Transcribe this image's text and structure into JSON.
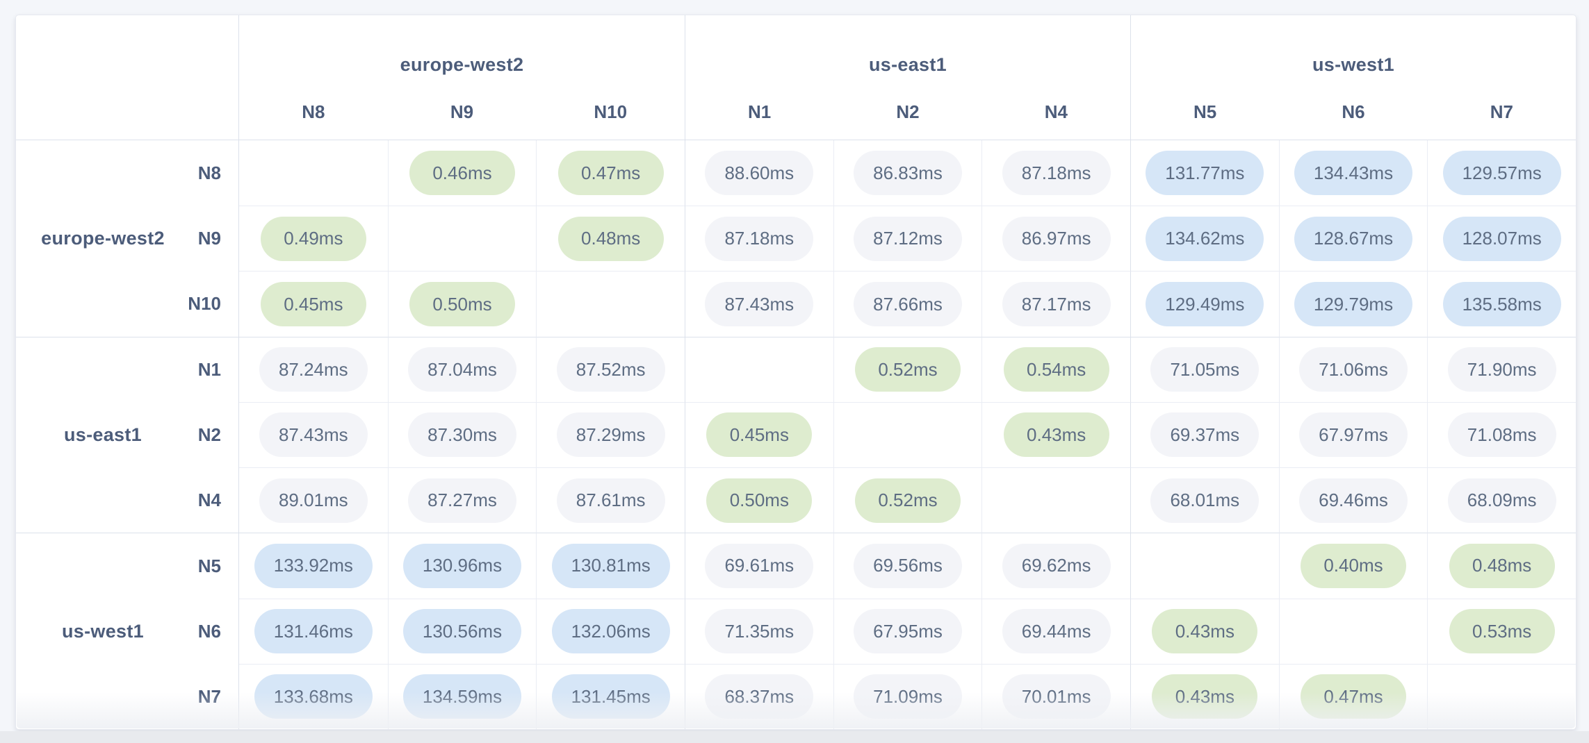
{
  "page": {
    "background": "#f4f6fa",
    "bottom_strip": "#e8eaee"
  },
  "colors": {
    "latency_low_bg": "#deeccf",
    "latency_mid_bg": "#f3f4f8",
    "latency_high_bg": "#d6e6f7",
    "pill_text": "#5e6d83",
    "label_text": "#4c5c7a",
    "line_strong": "#dce1eb",
    "line_light": "#eaedf4"
  },
  "matrix": {
    "column_groups": [
      {
        "label": "europe-west2",
        "nodes": [
          "N8",
          "N9",
          "N10"
        ]
      },
      {
        "label": "us-east1",
        "nodes": [
          "N1",
          "N2",
          "N4"
        ]
      },
      {
        "label": "us-west1",
        "nodes": [
          "N5",
          "N6",
          "N7"
        ]
      }
    ],
    "row_groups": [
      {
        "label": "europe-west2",
        "rows": [
          {
            "node": "N8",
            "cells": [
              "",
              "0.46ms",
              "0.47ms",
              "88.60ms",
              "86.83ms",
              "87.18ms",
              "131.77ms",
              "134.43ms",
              "129.57ms"
            ]
          },
          {
            "node": "N9",
            "cells": [
              "0.49ms",
              "",
              "0.48ms",
              "87.18ms",
              "87.12ms",
              "86.97ms",
              "134.62ms",
              "128.67ms",
              "128.07ms"
            ]
          },
          {
            "node": "N10",
            "cells": [
              "0.45ms",
              "0.50ms",
              "",
              "87.43ms",
              "87.66ms",
              "87.17ms",
              "129.49ms",
              "129.79ms",
              "135.58ms"
            ]
          }
        ]
      },
      {
        "label": "us-east1",
        "rows": [
          {
            "node": "N1",
            "cells": [
              "87.24ms",
              "87.04ms",
              "87.52ms",
              "",
              "0.52ms",
              "0.54ms",
              "71.05ms",
              "71.06ms",
              "71.90ms"
            ]
          },
          {
            "node": "N2",
            "cells": [
              "87.43ms",
              "87.30ms",
              "87.29ms",
              "0.45ms",
              "",
              "0.43ms",
              "69.37ms",
              "67.97ms",
              "71.08ms"
            ]
          },
          {
            "node": "N4",
            "cells": [
              "89.01ms",
              "87.27ms",
              "87.61ms",
              "0.50ms",
              "0.52ms",
              "",
              "68.01ms",
              "69.46ms",
              "68.09ms"
            ]
          }
        ]
      },
      {
        "label": "us-west1",
        "rows": [
          {
            "node": "N5",
            "cells": [
              "133.92ms",
              "130.96ms",
              "130.81ms",
              "69.61ms",
              "69.56ms",
              "69.62ms",
              "",
              "0.40ms",
              "0.48ms"
            ]
          },
          {
            "node": "N6",
            "cells": [
              "131.46ms",
              "130.56ms",
              "132.06ms",
              "71.35ms",
              "67.95ms",
              "69.44ms",
              "0.43ms",
              "",
              "0.53ms"
            ]
          },
          {
            "node": "N7",
            "cells": [
              "133.68ms",
              "134.59ms",
              "131.45ms",
              "68.37ms",
              "71.09ms",
              "70.01ms",
              "0.43ms",
              "0.47ms",
              ""
            ]
          }
        ]
      }
    ],
    "latency_tiers": {
      "low_max_ms": 1,
      "high_min_ms": 100
    }
  }
}
